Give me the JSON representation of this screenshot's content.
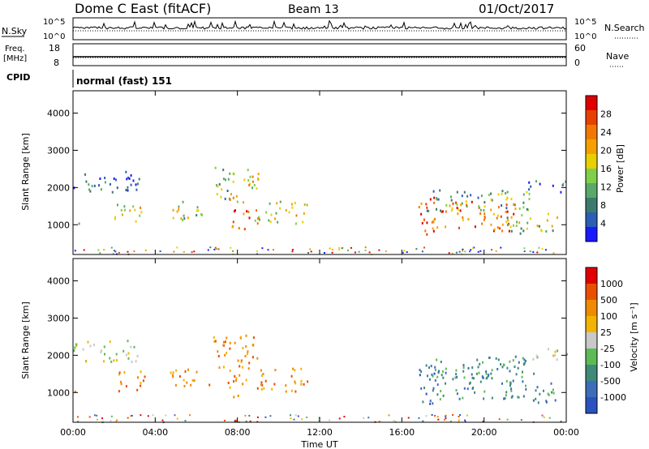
{
  "header": {
    "station": "Dome C East (fitACF)",
    "beam": "Beam 13",
    "date": "01/Oct/2017"
  },
  "ancillary": {
    "nsky_label": "N.Sky",
    "nsearch_label": "N.Search",
    "nsky_ticks": [
      "10^5",
      "10^0"
    ],
    "freq_label_1": "Freq.",
    "freq_label_2": "[MHz]",
    "freq_ticks": [
      "18",
      "8"
    ],
    "nave_label": "Nave",
    "nave_ticks": [
      "60",
      "0"
    ],
    "cpid_label": "CPID",
    "cpid_value": "normal (fast) 151"
  },
  "x_ticks": [
    "00:00",
    "04:00",
    "08:00",
    "12:00",
    "16:00",
    "20:00",
    "00:00"
  ],
  "xlabel": "Time UT",
  "colors": {
    "power": [
      "#1a1aff",
      "#2a5fb5",
      "#3d7a6e",
      "#5aa86a",
      "#7fcf4a",
      "#e8d000",
      "#f5a000",
      "#f07800",
      "#e84000",
      "#e00000"
    ],
    "velocity": [
      "#2a52be",
      "#3d6db8",
      "#3f8a78",
      "#5dbb55",
      "#c8c8c8",
      "#f2b400",
      "#f08a00",
      "#e85000",
      "#e00000"
    ]
  },
  "chart_data": [
    {
      "type": "heatmap",
      "name": "power",
      "ylabel": "Slant Range [km]",
      "yticks": [
        "4000",
        "3000",
        "2000",
        "1000"
      ],
      "ylim": [
        200,
        4600
      ],
      "xlim": [
        0,
        24
      ],
      "colorbar_label": "Power [dB]",
      "colorbar_ticks": [
        "28",
        "24",
        "20",
        "16",
        "12",
        "8",
        "4"
      ],
      "clim": [
        0,
        32
      ],
      "blobs": [
        {
          "t0": 0.0,
          "t1": 0.4,
          "r0": 1000,
          "r1": 1200,
          "v": 8
        },
        {
          "t0": 0.0,
          "t1": 3.2,
          "r0": 1850,
          "r1": 2450,
          "v": 6
        },
        {
          "t0": 2.0,
          "t1": 3.5,
          "r0": 1050,
          "r1": 1600,
          "v": 16
        },
        {
          "t0": 4.6,
          "t1": 6.6,
          "r0": 1150,
          "r1": 1650,
          "v": 14
        },
        {
          "t0": 6.6,
          "t1": 7.6,
          "r0": 1700,
          "r1": 2600,
          "v": 11
        },
        {
          "t0": 7.5,
          "t1": 8.6,
          "r0": 900,
          "r1": 1500,
          "v": 26
        },
        {
          "t0": 7.6,
          "t1": 9.0,
          "r0": 1600,
          "r1": 2600,
          "v": 18
        },
        {
          "t0": 8.8,
          "t1": 11.4,
          "r0": 1050,
          "r1": 1700,
          "v": 18
        },
        {
          "t0": 16.8,
          "t1": 17.6,
          "r0": 600,
          "r1": 1800,
          "v": 26
        },
        {
          "t0": 17.4,
          "t1": 21.5,
          "r0": 850,
          "r1": 1650,
          "v": 24
        },
        {
          "t0": 17.2,
          "t1": 22.5,
          "r0": 1400,
          "r1": 2000,
          "v": 12
        },
        {
          "t0": 21.0,
          "t1": 23.7,
          "r0": 750,
          "r1": 1350,
          "v": 14
        },
        {
          "t0": 22.0,
          "t1": 24.0,
          "r0": 1900,
          "r1": 2200,
          "v": 6
        }
      ]
    },
    {
      "type": "heatmap",
      "name": "velocity",
      "ylabel": "Slant Range [km]",
      "yticks": [
        "4000",
        "3000",
        "2000",
        "1000"
      ],
      "ylim": [
        200,
        4600
      ],
      "xlim": [
        0,
        24
      ],
      "colorbar_label": "Velocity [m s⁻¹]",
      "colorbar_ticks": [
        "1000",
        "500",
        "100",
        "25",
        "-25",
        "-100",
        "-500",
        "-1000"
      ],
      "blobs": [
        {
          "t0": 0.0,
          "t1": 0.4,
          "r0": 1000,
          "r1": 1200,
          "c": 6
        },
        {
          "t0": 0.0,
          "t1": 3.2,
          "r0": 1850,
          "r1": 2450,
          "c": 4
        },
        {
          "t0": 2.0,
          "t1": 3.5,
          "r0": 1050,
          "r1": 1600,
          "c": 6
        },
        {
          "t0": 4.6,
          "t1": 6.6,
          "r0": 1150,
          "r1": 1650,
          "c": 6
        },
        {
          "t0": 6.6,
          "t1": 7.6,
          "r0": 1700,
          "r1": 2600,
          "c": 6
        },
        {
          "t0": 7.5,
          "t1": 8.6,
          "r0": 900,
          "r1": 1500,
          "c": 6
        },
        {
          "t0": 7.6,
          "t1": 9.0,
          "r0": 1600,
          "r1": 2600,
          "c": 6
        },
        {
          "t0": 8.8,
          "t1": 11.4,
          "r0": 1050,
          "r1": 1700,
          "c": 6
        },
        {
          "t0": 16.8,
          "t1": 17.6,
          "r0": 600,
          "r1": 1800,
          "c": 1
        },
        {
          "t0": 17.4,
          "t1": 21.5,
          "r0": 850,
          "r1": 1650,
          "c": 2
        },
        {
          "t0": 17.2,
          "t1": 22.5,
          "r0": 1400,
          "r1": 2000,
          "c": 2
        },
        {
          "t0": 21.0,
          "t1": 23.7,
          "r0": 750,
          "r1": 1350,
          "c": 2
        },
        {
          "t0": 22.0,
          "t1": 24.0,
          "r0": 1900,
          "r1": 2200,
          "c": 4
        }
      ]
    }
  ]
}
